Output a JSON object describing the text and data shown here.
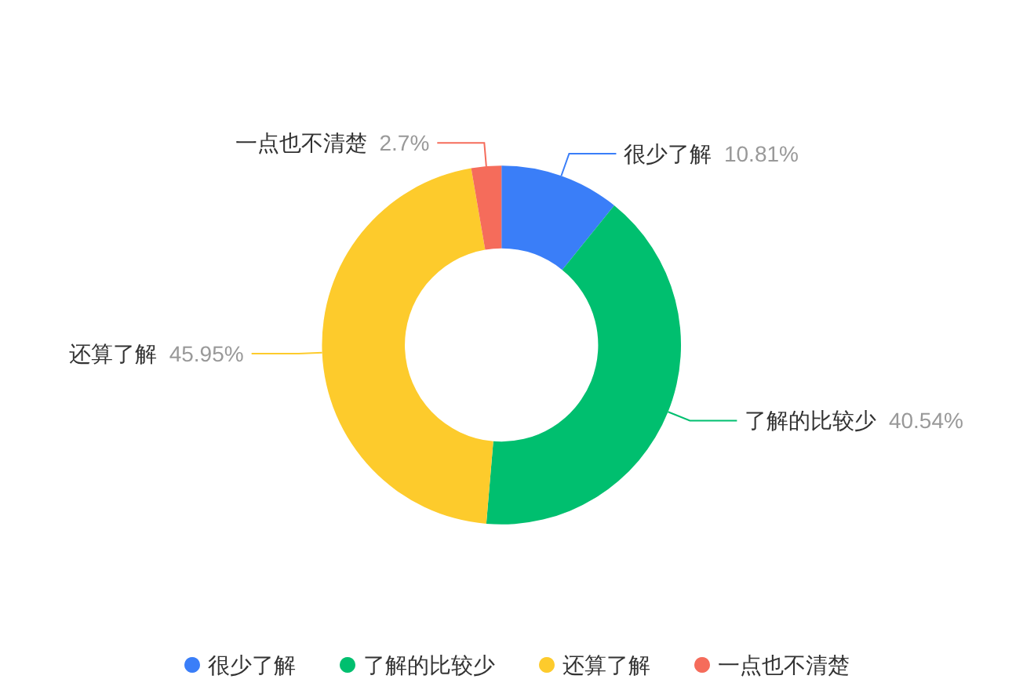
{
  "chart_data": {
    "type": "donut",
    "categories": [
      "很少了解",
      "了解的比较少",
      "还算了解",
      "一点也不清楚"
    ],
    "values": [
      10.81,
      40.54,
      45.95,
      2.7
    ],
    "value_labels": [
      "10.81%",
      "40.54%",
      "45.95%",
      "2.7%"
    ],
    "colors": [
      "#3a7ef8",
      "#00bf6f",
      "#fdcb2c",
      "#f56c5b"
    ],
    "legend": "bottom"
  }
}
